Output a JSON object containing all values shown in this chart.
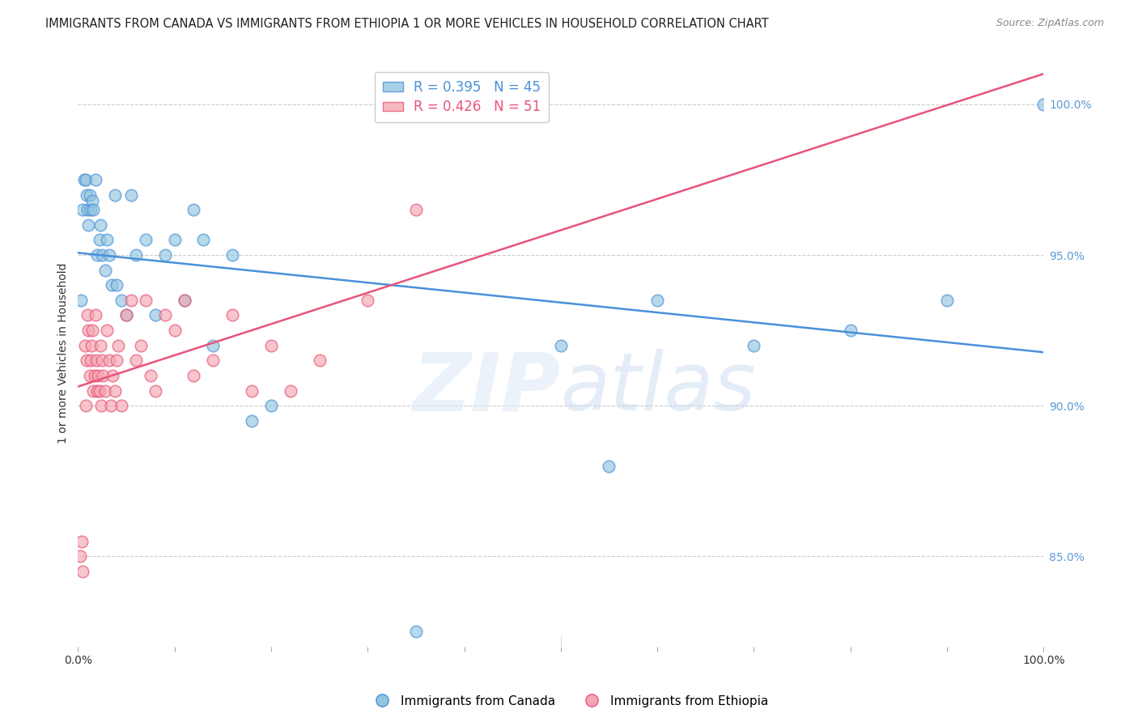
{
  "title": "IMMIGRANTS FROM CANADA VS IMMIGRANTS FROM ETHIOPIA 1 OR MORE VEHICLES IN HOUSEHOLD CORRELATION CHART",
  "source": "Source: ZipAtlas.com",
  "ylabel": "1 or more Vehicles in Household",
  "legend_canada_r": "0.395",
  "legend_canada_n": "45",
  "legend_ethiopia_r": "0.426",
  "legend_ethiopia_n": "51",
  "canada_color": "#92c5de",
  "ethiopia_color": "#f4a6b0",
  "canada_line_color": "#4a90d9",
  "ethiopia_line_color": "#e8547a",
  "canada_x": [
    0.3,
    0.5,
    0.6,
    0.8,
    0.9,
    1.0,
    1.1,
    1.2,
    1.3,
    1.5,
    1.6,
    1.8,
    2.0,
    2.2,
    2.3,
    2.5,
    2.8,
    3.0,
    3.2,
    3.5,
    3.8,
    4.0,
    4.5,
    5.0,
    5.5,
    6.0,
    7.0,
    8.0,
    9.0,
    10.0,
    11.0,
    12.0,
    13.0,
    14.0,
    16.0,
    18.0,
    20.0,
    35.0,
    50.0,
    55.0,
    60.0,
    70.0,
    80.0,
    90.0,
    100.0
  ],
  "canada_y": [
    93.5,
    96.5,
    97.5,
    97.5,
    97.0,
    96.5,
    96.0,
    97.0,
    96.5,
    96.8,
    96.5,
    97.5,
    95.0,
    95.5,
    96.0,
    95.0,
    94.5,
    95.5,
    95.0,
    94.0,
    97.0,
    94.0,
    93.5,
    93.0,
    97.0,
    95.0,
    95.5,
    93.0,
    95.0,
    95.5,
    93.5,
    96.5,
    95.5,
    92.0,
    95.0,
    89.5,
    90.0,
    82.5,
    92.0,
    88.0,
    93.5,
    92.0,
    92.5,
    93.5,
    100.0
  ],
  "ethiopia_x": [
    0.2,
    0.4,
    0.5,
    0.7,
    0.8,
    0.9,
    1.0,
    1.1,
    1.2,
    1.3,
    1.4,
    1.5,
    1.6,
    1.7,
    1.8,
    1.9,
    2.0,
    2.1,
    2.2,
    2.3,
    2.4,
    2.5,
    2.6,
    2.8,
    3.0,
    3.2,
    3.4,
    3.6,
    3.8,
    4.0,
    4.2,
    4.5,
    5.0,
    5.5,
    6.0,
    6.5,
    7.0,
    7.5,
    8.0,
    9.0,
    10.0,
    11.0,
    12.0,
    14.0,
    16.0,
    18.0,
    20.0,
    22.0,
    25.0,
    30.0,
    35.0
  ],
  "ethiopia_y": [
    85.0,
    85.5,
    84.5,
    92.0,
    90.0,
    91.5,
    93.0,
    92.5,
    91.0,
    91.5,
    92.0,
    92.5,
    90.5,
    91.0,
    93.0,
    91.5,
    90.5,
    91.0,
    90.5,
    92.0,
    90.0,
    91.5,
    91.0,
    90.5,
    92.5,
    91.5,
    90.0,
    91.0,
    90.5,
    91.5,
    92.0,
    90.0,
    93.0,
    93.5,
    91.5,
    92.0,
    93.5,
    91.0,
    90.5,
    93.0,
    92.5,
    93.5,
    91.0,
    91.5,
    93.0,
    90.5,
    92.0,
    90.5,
    91.5,
    93.5,
    96.5
  ],
  "ylim_min": 82.0,
  "ylim_max": 101.5,
  "xlim_min": 0.0,
  "xlim_max": 100.0,
  "yticks": [
    85.0,
    90.0,
    95.0,
    100.0
  ],
  "ytick_labels": [
    "85.0%",
    "90.0%",
    "95.0%",
    "100.0%"
  ]
}
